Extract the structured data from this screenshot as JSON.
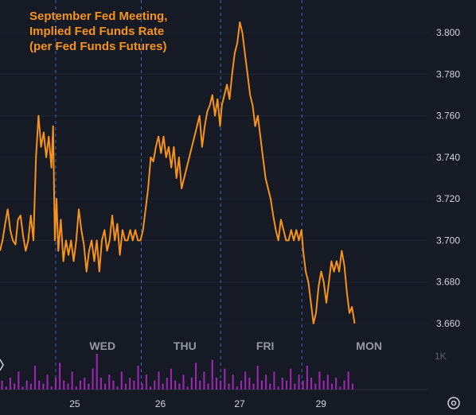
{
  "chart_data": {
    "type": "line",
    "title_lines": [
      "September Fed Meeting,",
      "Implied Fed Funds Rate",
      "(per Fed Funds Futures)"
    ],
    "y_ticks": [
      "3.800",
      "3.780",
      "3.760",
      "3.740",
      "3.720",
      "3.700",
      "3.680",
      "3.660"
    ],
    "ylim": [
      3.655,
      3.805
    ],
    "x_ticks": [
      "25",
      "26",
      "27",
      "29"
    ],
    "day_labels": [
      "WED",
      "THU",
      "FRI",
      "MON"
    ],
    "volume_axis_label": "1K",
    "line_color": "#f7931a",
    "volume_color": "#9c27b0",
    "xlim": [
      0,
      100
    ],
    "session_separators": [
      13.0,
      33.0,
      51.5,
      70.5
    ],
    "series": [
      {
        "values": [
          [
            0.0,
            3.695
          ],
          [
            0.6,
            3.7
          ],
          [
            1.2,
            3.708
          ],
          [
            1.8,
            3.715
          ],
          [
            2.4,
            3.705
          ],
          [
            3.0,
            3.7
          ],
          [
            3.6,
            3.698
          ],
          [
            4.2,
            3.71
          ],
          [
            4.8,
            3.712
          ],
          [
            5.4,
            3.702
          ],
          [
            6.0,
            3.695
          ],
          [
            6.6,
            3.7
          ],
          [
            7.2,
            3.712
          ],
          [
            7.8,
            3.7
          ],
          [
            8.4,
            3.74
          ],
          [
            9.0,
            3.76
          ],
          [
            9.6,
            3.745
          ],
          [
            10.2,
            3.752
          ],
          [
            10.8,
            3.74
          ],
          [
            11.4,
            3.75
          ],
          [
            12.0,
            3.735
          ],
          [
            12.4,
            3.755
          ],
          [
            12.8,
            3.7
          ],
          [
            13.2,
            3.72
          ],
          [
            13.6,
            3.695
          ],
          [
            14.2,
            3.71
          ],
          [
            14.8,
            3.69
          ],
          [
            15.4,
            3.7
          ],
          [
            16.0,
            3.693
          ],
          [
            16.6,
            3.7
          ],
          [
            17.2,
            3.69
          ],
          [
            17.8,
            3.7
          ],
          [
            18.4,
            3.715
          ],
          [
            19.0,
            3.705
          ],
          [
            19.6,
            3.698
          ],
          [
            20.2,
            3.685
          ],
          [
            20.8,
            3.695
          ],
          [
            21.4,
            3.7
          ],
          [
            22.0,
            3.69
          ],
          [
            22.6,
            3.7
          ],
          [
            23.2,
            3.685
          ],
          [
            23.8,
            3.7
          ],
          [
            24.4,
            3.705
          ],
          [
            25.0,
            3.695
          ],
          [
            25.6,
            3.7
          ],
          [
            26.2,
            3.712
          ],
          [
            26.8,
            3.7
          ],
          [
            27.4,
            3.708
          ],
          [
            28.0,
            3.693
          ],
          [
            28.6,
            3.705
          ],
          [
            29.2,
            3.7
          ],
          [
            29.8,
            3.7
          ],
          [
            30.4,
            3.705
          ],
          [
            31.0,
            3.7
          ],
          [
            31.6,
            3.705
          ],
          [
            32.2,
            3.7
          ],
          [
            32.8,
            3.7
          ],
          [
            33.4,
            3.705
          ],
          [
            34.0,
            3.715
          ],
          [
            34.6,
            3.725
          ],
          [
            35.2,
            3.74
          ],
          [
            35.8,
            3.738
          ],
          [
            36.4,
            3.745
          ],
          [
            37.0,
            3.75
          ],
          [
            37.6,
            3.742
          ],
          [
            38.2,
            3.75
          ],
          [
            38.8,
            3.74
          ],
          [
            39.4,
            3.745
          ],
          [
            40.0,
            3.735
          ],
          [
            40.6,
            3.745
          ],
          [
            41.2,
            3.73
          ],
          [
            41.8,
            3.74
          ],
          [
            42.4,
            3.725
          ],
          [
            43.0,
            3.73
          ],
          [
            43.6,
            3.735
          ],
          [
            44.2,
            3.74
          ],
          [
            44.8,
            3.745
          ],
          [
            45.4,
            3.75
          ],
          [
            46.0,
            3.755
          ],
          [
            46.6,
            3.76
          ],
          [
            47.2,
            3.745
          ],
          [
            47.8,
            3.755
          ],
          [
            48.4,
            3.762
          ],
          [
            49.0,
            3.765
          ],
          [
            49.6,
            3.77
          ],
          [
            50.2,
            3.76
          ],
          [
            50.8,
            3.768
          ],
          [
            51.4,
            3.755
          ],
          [
            51.8,
            3.765
          ],
          [
            52.4,
            3.77
          ],
          [
            53.0,
            3.775
          ],
          [
            53.6,
            3.768
          ],
          [
            54.2,
            3.78
          ],
          [
            54.8,
            3.79
          ],
          [
            55.4,
            3.795
          ],
          [
            56.0,
            3.805
          ],
          [
            56.6,
            3.8
          ],
          [
            57.2,
            3.79
          ],
          [
            57.8,
            3.78
          ],
          [
            58.4,
            3.77
          ],
          [
            59.0,
            3.765
          ],
          [
            59.6,
            3.755
          ],
          [
            60.2,
            3.76
          ],
          [
            60.8,
            3.75
          ],
          [
            61.4,
            3.74
          ],
          [
            62.0,
            3.73
          ],
          [
            62.6,
            3.725
          ],
          [
            63.2,
            3.72
          ],
          [
            63.8,
            3.712
          ],
          [
            64.4,
            3.705
          ],
          [
            65.0,
            3.7
          ],
          [
            65.6,
            3.71
          ],
          [
            66.2,
            3.705
          ],
          [
            66.8,
            3.7
          ],
          [
            67.4,
            3.7
          ],
          [
            68.0,
            3.705
          ],
          [
            68.6,
            3.7
          ],
          [
            69.2,
            3.705
          ],
          [
            69.8,
            3.7
          ],
          [
            70.4,
            3.705
          ],
          [
            70.8,
            3.695
          ],
          [
            71.4,
            3.685
          ],
          [
            72.0,
            3.68
          ],
          [
            72.6,
            3.67
          ],
          [
            73.2,
            3.66
          ],
          [
            73.8,
            3.665
          ],
          [
            74.4,
            3.678
          ],
          [
            75.0,
            3.685
          ],
          [
            75.6,
            3.68
          ],
          [
            76.2,
            3.67
          ],
          [
            76.8,
            3.68
          ],
          [
            77.4,
            3.69
          ],
          [
            78.0,
            3.685
          ],
          [
            78.6,
            3.69
          ],
          [
            79.2,
            3.685
          ],
          [
            79.8,
            3.695
          ],
          [
            80.4,
            3.688
          ],
          [
            81.0,
            3.675
          ],
          [
            81.6,
            3.665
          ],
          [
            82.2,
            3.668
          ],
          [
            82.8,
            3.66
          ]
        ]
      }
    ],
    "volume": [
      3,
      1,
      4,
      2,
      6,
      1,
      3,
      2,
      8,
      3,
      2,
      5,
      1,
      4,
      9,
      3,
      2,
      6,
      1,
      3,
      4,
      2,
      7,
      12,
      4,
      2,
      5,
      3,
      1,
      6,
      2,
      4,
      3,
      8,
      2,
      5,
      1,
      3,
      6,
      2,
      4,
      7,
      3,
      2,
      5,
      1,
      4,
      9,
      3,
      6,
      2,
      10,
      4,
      3,
      7,
      2,
      5,
      1,
      3,
      6,
      4,
      2,
      8,
      3,
      5,
      2,
      6,
      1,
      4,
      3,
      7,
      2,
      5,
      3,
      8,
      4,
      2,
      6,
      3,
      5,
      2,
      4,
      1,
      3,
      6,
      2
    ]
  }
}
